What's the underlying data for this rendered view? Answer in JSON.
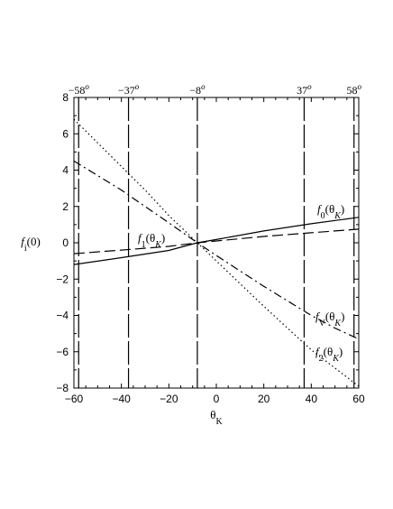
{
  "chart_data": {
    "type": "line",
    "title": "",
    "xlabel": "θ",
    "xlabel_sub": "K",
    "ylabel": "f",
    "ylabel_sub": "i",
    "ylabel_tail": "(0)",
    "xlim": [
      -60,
      60
    ],
    "ylim": [
      -8,
      8
    ],
    "xticks": [
      -60,
      -40,
      -20,
      0,
      20,
      40,
      60
    ],
    "yticks": [
      -8,
      -6,
      -4,
      -2,
      0,
      2,
      4,
      6,
      8
    ],
    "grid": false,
    "vertical_markers": [
      {
        "x": -58,
        "label": "−58",
        "sup": "o"
      },
      {
        "x": -37,
        "label": "−37",
        "sup": "o"
      },
      {
        "x": -8,
        "label": "−8",
        "sup": "o"
      },
      {
        "x": 37,
        "label": "37",
        "sup": "o"
      },
      {
        "x": 58,
        "label": "58",
        "sup": "o"
      }
    ],
    "series": [
      {
        "name": "f0(θK)",
        "label_main": "f",
        "label_sub": "0",
        "label_arg": "(θ",
        "label_argsub": "K",
        "label_close": ")",
        "style": "solid",
        "x": [
          -60,
          -40,
          -20,
          -8,
          0,
          20,
          40,
          60
        ],
        "y": [
          -1.2,
          -0.82,
          -0.42,
          0,
          0.18,
          0.65,
          1.05,
          1.4
        ]
      },
      {
        "name": "f1(θK)",
        "label_main": "f",
        "label_sub": "1",
        "label_arg": "(θ",
        "label_argsub": "K",
        "label_close": ")",
        "style": "dashed",
        "x": [
          -60,
          -40,
          -20,
          -8,
          0,
          20,
          40,
          60
        ],
        "y": [
          -0.6,
          -0.4,
          -0.2,
          0,
          0.1,
          0.35,
          0.55,
          0.75
        ]
      },
      {
        "name": "fV(θK)",
        "label_main": "f",
        "label_sub": "V",
        "label_arg": "(θ",
        "label_argsub": "K",
        "label_close": ")",
        "style": "dashdot",
        "x": [
          -60,
          -50,
          -40,
          -30,
          -20,
          -8,
          0,
          10,
          20,
          30,
          40,
          50,
          60
        ],
        "y": [
          4.5,
          3.7,
          2.9,
          2.0,
          1.1,
          0,
          -0.7,
          -1.55,
          -2.4,
          -3.2,
          -4.0,
          -4.7,
          -5.3
        ]
      },
      {
        "name": "f2(θK)",
        "label_main": "f",
        "label_sub": "2",
        "label_arg": "(θ",
        "label_argsub": "K",
        "label_close": ")",
        "style": "dotted",
        "x": [
          -60,
          -50,
          -40,
          -30,
          -20,
          -8,
          0,
          10,
          20,
          30,
          40,
          50,
          60
        ],
        "y": [
          6.8,
          5.5,
          4.2,
          2.9,
          1.5,
          0,
          -1.0,
          -2.25,
          -3.5,
          -4.7,
          -5.9,
          -6.9,
          -7.9
        ]
      }
    ]
  }
}
